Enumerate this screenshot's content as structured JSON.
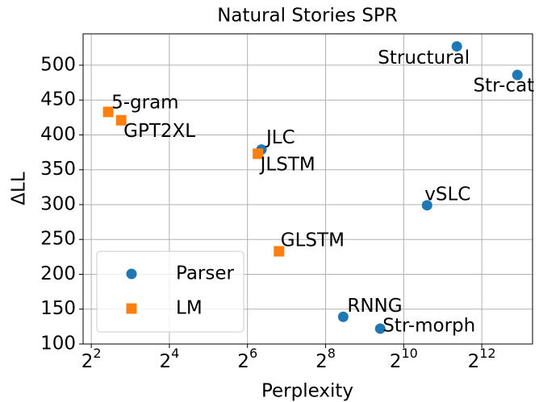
{
  "chart_data": {
    "type": "scatter",
    "title": "Natural Stories SPR",
    "x_label": "Perplexity",
    "y_label": "ΔLL",
    "xscale": "log2",
    "xlim": [
      3.46,
      10080
    ],
    "ylim": [
      100,
      545
    ],
    "xticks": [
      {
        "value": 4,
        "label": "2^2"
      },
      {
        "value": 16,
        "label": "2^4"
      },
      {
        "value": 64,
        "label": "2^6"
      },
      {
        "value": 256,
        "label": "2^8"
      },
      {
        "value": 1024,
        "label": "2^10"
      },
      {
        "value": 4096,
        "label": "2^12"
      }
    ],
    "yticks": [
      100,
      150,
      200,
      250,
      300,
      350,
      400,
      450,
      500
    ],
    "grid": true,
    "legend": "lower left",
    "series": [
      {
        "name": "Parser",
        "color": "#1f77b4",
        "marker": "circle",
        "labels": [
          "Structural",
          "Str-cat",
          "vSLC",
          "JLC",
          "RNNG",
          "Str-morph"
        ],
        "x": [
          2630,
          7700,
          1550,
          82,
          350,
          675
        ],
        "values": [
          527,
          486,
          299,
          379,
          139,
          122
        ]
      },
      {
        "name": "LM",
        "color": "#ff7f0e",
        "marker": "square",
        "labels": [
          "5-gram",
          "GPT2XL",
          "JLSTM",
          "GLSTM"
        ],
        "x": [
          5.4,
          6.8,
          77,
          112
        ],
        "values": [
          433,
          421,
          373,
          233
        ]
      }
    ]
  }
}
